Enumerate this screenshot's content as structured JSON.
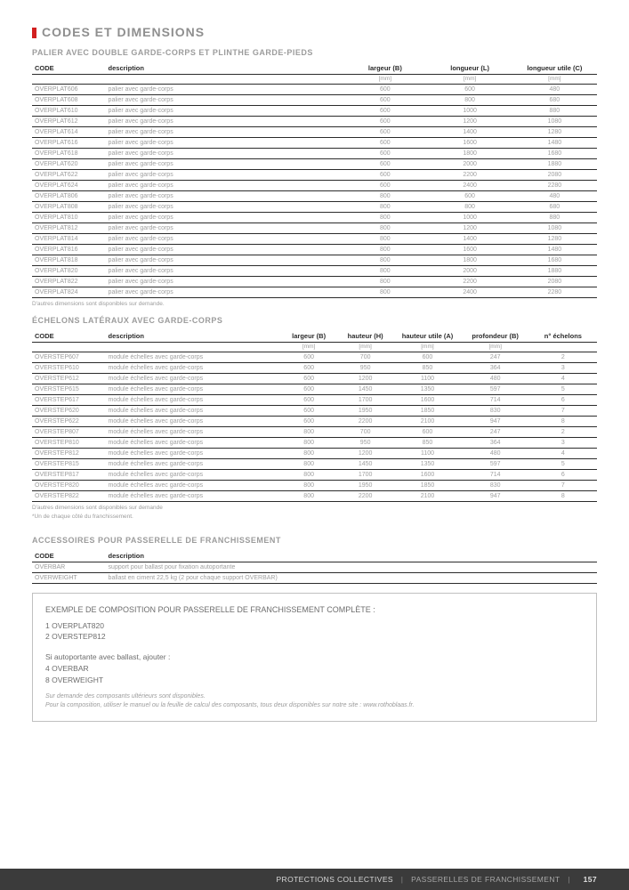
{
  "main_title": "CODES ET DIMENSIONS",
  "table1": {
    "title": "PALIER AVEC DOUBLE GARDE-CORPS ET PLINTHE GARDE-PIEDS",
    "headers": [
      "CODE",
      "description",
      "largeur (B)",
      "longueur (L)",
      "longueur utile (C)"
    ],
    "units": [
      "",
      "",
      "[mm]",
      "[mm]",
      "[mm]"
    ],
    "col_widths": [
      "13%",
      "42%",
      "15%",
      "15%",
      "15%"
    ],
    "rows": [
      [
        "OVERPLAT606",
        "palier avec garde-corps",
        "600",
        "600",
        "480"
      ],
      [
        "OVERPLAT608",
        "palier avec garde-corps",
        "600",
        "800",
        "680"
      ],
      [
        "OVERPLAT610",
        "palier avec garde-corps",
        "600",
        "1000",
        "880"
      ],
      [
        "OVERPLAT612",
        "palier avec garde-corps",
        "600",
        "1200",
        "1080"
      ],
      [
        "OVERPLAT614",
        "palier avec garde-corps",
        "600",
        "1400",
        "1280"
      ],
      [
        "OVERPLAT616",
        "palier avec garde-corps",
        "600",
        "1600",
        "1480"
      ],
      [
        "OVERPLAT618",
        "palier avec garde-corps",
        "600",
        "1800",
        "1680"
      ],
      [
        "OVERPLAT620",
        "palier avec garde-corps",
        "600",
        "2000",
        "1880"
      ],
      [
        "OVERPLAT622",
        "palier avec garde-corps",
        "600",
        "2200",
        "2080"
      ],
      [
        "OVERPLAT624",
        "palier avec garde-corps",
        "600",
        "2400",
        "2280"
      ],
      [
        "OVERPLAT806",
        "palier avec garde-corps",
        "800",
        "600",
        "480"
      ],
      [
        "OVERPLAT808",
        "palier avec garde-corps",
        "800",
        "800",
        "680"
      ],
      [
        "OVERPLAT810",
        "palier avec garde-corps",
        "800",
        "1000",
        "880"
      ],
      [
        "OVERPLAT812",
        "palier avec garde-corps",
        "800",
        "1200",
        "1080"
      ],
      [
        "OVERPLAT814",
        "palier avec garde-corps",
        "800",
        "1400",
        "1280"
      ],
      [
        "OVERPLAT816",
        "palier avec garde-corps",
        "800",
        "1600",
        "1480"
      ],
      [
        "OVERPLAT818",
        "palier avec garde-corps",
        "800",
        "1800",
        "1680"
      ],
      [
        "OVERPLAT820",
        "palier avec garde-corps",
        "800",
        "2000",
        "1880"
      ],
      [
        "OVERPLAT822",
        "palier avec garde-corps",
        "800",
        "2200",
        "2080"
      ],
      [
        "OVERPLAT824",
        "palier avec garde-corps",
        "800",
        "2400",
        "2280"
      ]
    ],
    "footnote": "D'autres dimensions sont disponibles sur demande."
  },
  "table2": {
    "title": "ÉCHELONS LATÉRAUX AVEC GARDE-CORPS",
    "headers": [
      "CODE",
      "description",
      "largeur (B)",
      "hauteur (H)",
      "hauteur utile (A)",
      "profondeur (B)",
      "n° échelons"
    ],
    "units": [
      "",
      "",
      "[mm]",
      "[mm]",
      "[mm]",
      "[mm]",
      ""
    ],
    "col_widths": [
      "13%",
      "31%",
      "10%",
      "10%",
      "12%",
      "12%",
      "12%"
    ],
    "rows": [
      [
        "OVERSTEP607",
        "module échelles avec garde-corps",
        "600",
        "700",
        "600",
        "247",
        "2"
      ],
      [
        "OVERSTEP610",
        "module échelles avec garde-corps",
        "600",
        "950",
        "850",
        "364",
        "3"
      ],
      [
        "OVERSTEP612",
        "module échelles avec garde-corps",
        "600",
        "1200",
        "1100",
        "480",
        "4"
      ],
      [
        "OVERSTEP615",
        "module échelles avec garde-corps",
        "600",
        "1450",
        "1350",
        "597",
        "5"
      ],
      [
        "OVERSTEP617",
        "module échelles avec garde-corps",
        "600",
        "1700",
        "1600",
        "714",
        "6"
      ],
      [
        "OVERSTEP620",
        "module échelles avec garde-corps",
        "600",
        "1950",
        "1850",
        "830",
        "7"
      ],
      [
        "OVERSTEP622",
        "module échelles avec garde-corps",
        "600",
        "2200",
        "2100",
        "947",
        "8"
      ],
      [
        "OVERSTEP807",
        "module échelles avec garde-corps",
        "800",
        "700",
        "600",
        "247",
        "2"
      ],
      [
        "OVERSTEP810",
        "module échelles avec garde-corps",
        "800",
        "950",
        "850",
        "364",
        "3"
      ],
      [
        "OVERSTEP812",
        "module échelles avec garde-corps",
        "800",
        "1200",
        "1100",
        "480",
        "4"
      ],
      [
        "OVERSTEP815",
        "module échelles avec garde-corps",
        "800",
        "1450",
        "1350",
        "597",
        "5"
      ],
      [
        "OVERSTEP817",
        "module échelles avec garde-corps",
        "800",
        "1700",
        "1600",
        "714",
        "6"
      ],
      [
        "OVERSTEP820",
        "module échelles avec garde-corps",
        "800",
        "1950",
        "1850",
        "830",
        "7"
      ],
      [
        "OVERSTEP822",
        "module échelles avec garde-corps",
        "800",
        "2200",
        "2100",
        "947",
        "8"
      ]
    ],
    "footnote1": "D'autres dimensions sont disponibles sur demande",
    "footnote2": "*Un de chaque côté du franchissement."
  },
  "table3": {
    "title": "ACCESSOIRES POUR PASSERELLE DE FRANCHISSEMENT",
    "headers": [
      "CODE",
      "description"
    ],
    "col_widths": [
      "13%",
      "87%"
    ],
    "rows": [
      [
        "OVERBAR",
        "support pour ballast pour fixation autoportante"
      ],
      [
        "OVERWEIGHT",
        "ballast en ciment 22,5 kg (2 pour chaque support OVERBAR)"
      ]
    ]
  },
  "example": {
    "title": "EXEMPLE DE COMPOSITION POUR PASSERELLE DE FRANCHISSEMENT COMPLÈTE :",
    "line1": "1 OVERPLAT820",
    "line2": "2 OVERSTEP812",
    "line3": "Si autoportante avec ballast, ajouter :",
    "line4": "4 OVERBAR",
    "line5": "8 OVERWEIGHT",
    "ital1": "Sur demande des composants ultérieurs sont disponibles.",
    "ital2": "Pour la composition, utiliser le manuel ou la feuille de calcul des composants, tous deux disponibles sur notre site : www.rothoblaas.fr."
  },
  "footer": {
    "left": "PROTECTIONS COLLECTIVES",
    "right": "PASSERELLES DE FRANCHISSEMENT",
    "page": "157"
  },
  "colors": {
    "accent": "#d22020",
    "text_muted": "#9c9c9c",
    "footer_bg": "#3b3b3b"
  }
}
